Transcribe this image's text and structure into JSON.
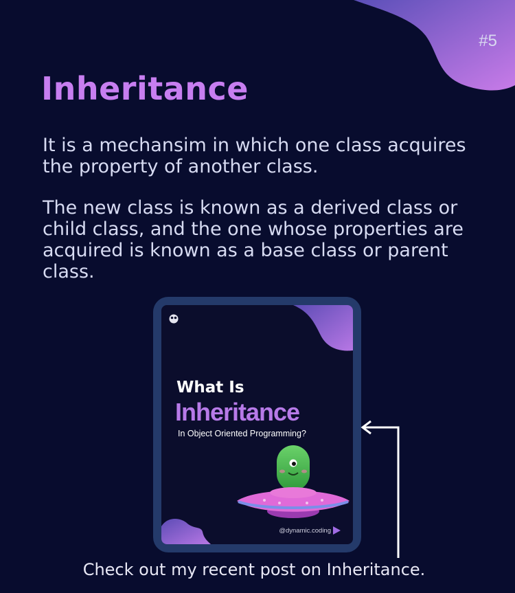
{
  "slide_number": "#5",
  "title": "Inheritance",
  "paragraphs": [
    "It is a mechansim in which one class acquires the property of another class.",
    "The new class is known as a derived class or child class, and the one whose properties are acquired is known as a base class or parent class."
  ],
  "post_preview": {
    "headline": "What Is",
    "title": "Inheritance",
    "subtitle": "In Object Oriented Programming?",
    "handle": "@dynamic.coding",
    "illustration": "alien-ufo-icon",
    "logo": "owl-logo-icon",
    "next_icon": "play-arrow-icon"
  },
  "caption": "Check out my recent post on Inheritance.",
  "colors": {
    "background": "#080c2e",
    "accent": "#c77ef0",
    "frame": "#243a6a",
    "text": "#d7dbf2"
  }
}
